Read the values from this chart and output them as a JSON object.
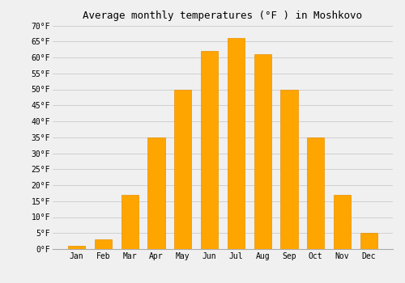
{
  "title": "Average monthly temperatures (°F ) in Moshkovo",
  "months": [
    "Jan",
    "Feb",
    "Mar",
    "Apr",
    "May",
    "Jun",
    "Jul",
    "Aug",
    "Sep",
    "Oct",
    "Nov",
    "Dec"
  ],
  "values": [
    1,
    3,
    17,
    35,
    50,
    62,
    66,
    61,
    50,
    35,
    17,
    5
  ],
  "bar_color": "#FFA500",
  "bar_edge_color": "#E89000",
  "background_color": "#f0f0f0",
  "grid_color": "#d0d0d0",
  "ylim": [
    0,
    70
  ],
  "yticks": [
    0,
    5,
    10,
    15,
    20,
    25,
    30,
    35,
    40,
    45,
    50,
    55,
    60,
    65,
    70
  ],
  "ytick_labels": [
    "0°F",
    "5°F",
    "10°F",
    "15°F",
    "20°F",
    "25°F",
    "30°F",
    "35°F",
    "40°F",
    "45°F",
    "50°F",
    "55°F",
    "60°F",
    "65°F",
    "70°F"
  ],
  "title_fontsize": 9,
  "tick_fontsize": 7,
  "font_family": "monospace",
  "figsize": [
    5.0,
    3.5
  ],
  "dpi": 100
}
